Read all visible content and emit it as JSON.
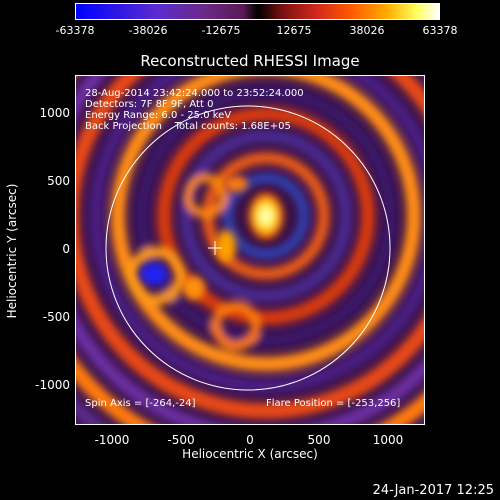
{
  "colorbar": {
    "labels": [
      "-63378",
      "-38026",
      "-12675",
      "12675",
      "38026",
      "63378"
    ]
  },
  "title": "Reconstructed RHESSI Image",
  "info": {
    "line1": "28-Aug-2014 23:42:24.000 to 23:52:24.000",
    "line2": "Detectors: 7F 8F 9F, Att 0",
    "line3": "Energy Range: 6.0 - 25.0 keV",
    "line4": "Back Projection    Total counts: 1.68E+05"
  },
  "footer_left": "Spin Axis = [-264,-24]",
  "footer_right": "Flare Position = [-253,256]",
  "axes": {
    "xlabel": "Heliocentric X (arcsec)",
    "ylabel": "Heliocentric Y (arcsec)",
    "xticks": [
      "-1000",
      "-500",
      "0",
      "500",
      "1000"
    ],
    "yticks": [
      "1000",
      "500",
      "0",
      "-500",
      "-1000"
    ]
  },
  "timestamp": "24-Jan-2017 12:25"
}
